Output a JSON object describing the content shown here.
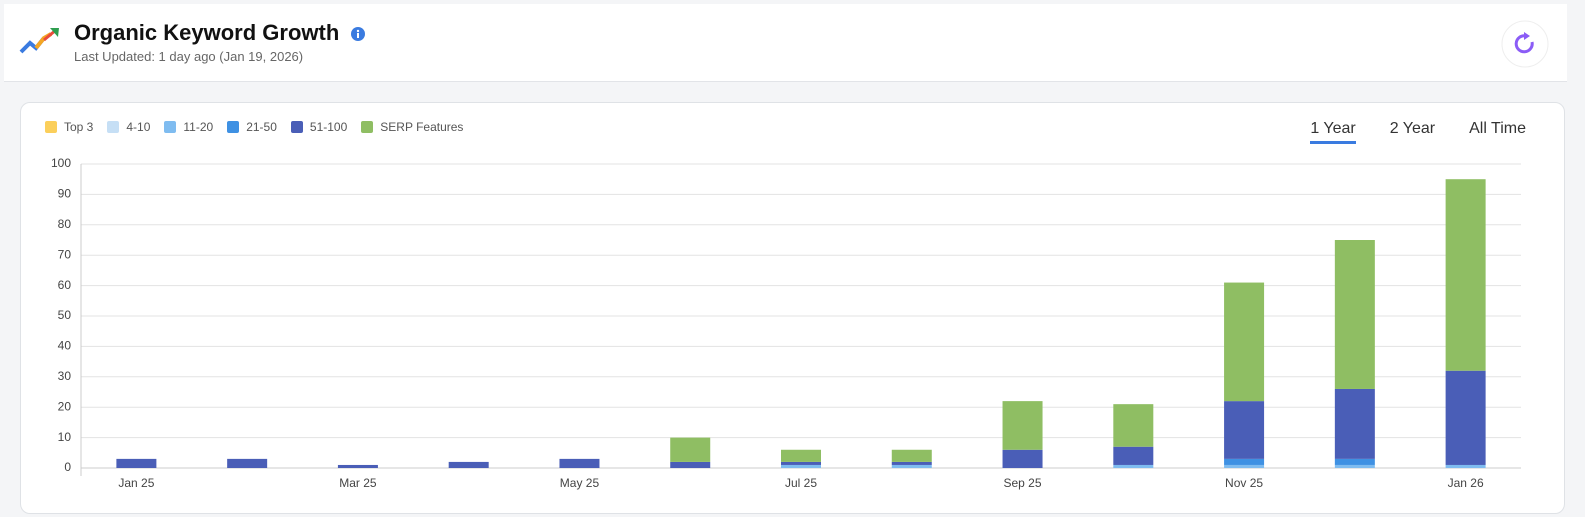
{
  "header": {
    "title": "Organic Keyword Growth",
    "subtitle": "Last Updated: 1 day ago (Jan 19, 2026)"
  },
  "range_options": [
    {
      "label": "1 Year",
      "active": true
    },
    {
      "label": "2 Year",
      "active": false
    },
    {
      "label": "All Time",
      "active": false
    }
  ],
  "chart_data": {
    "type": "stacked_bar",
    "categories": [
      "Jan 25",
      null,
      "Mar 25",
      null,
      "May 25",
      null,
      "Jul 25",
      null,
      "Sep 25",
      null,
      "Nov 25",
      null,
      "Jan 26"
    ],
    "series": [
      {
        "name": "Top 3",
        "color": "#fbcf5b",
        "values": [
          0,
          0,
          0,
          0,
          0,
          0,
          0,
          0,
          0,
          0,
          0,
          0,
          0
        ]
      },
      {
        "name": "4-10",
        "color": "#c6dff5",
        "values": [
          0,
          0,
          0,
          0,
          0,
          0,
          0,
          0,
          0,
          0,
          0,
          0,
          0
        ]
      },
      {
        "name": "11-20",
        "color": "#7fbcf0",
        "values": [
          0,
          0,
          0,
          0,
          0,
          0,
          1,
          1,
          0,
          1,
          1,
          1,
          1
        ]
      },
      {
        "name": "21-50",
        "color": "#3f91e3",
        "values": [
          0,
          0,
          0,
          0,
          0,
          0,
          0,
          0,
          0,
          0,
          2,
          2,
          0
        ]
      },
      {
        "name": "51-100",
        "color": "#4a5eb7",
        "values": [
          3,
          3,
          1,
          2,
          3,
          2,
          1,
          1,
          6,
          6,
          19,
          23,
          31
        ]
      },
      {
        "name": "SERP Features",
        "color": "#8fbe63",
        "values": [
          0,
          0,
          0,
          0,
          0,
          8,
          4,
          4,
          16,
          14,
          39,
          49,
          63
        ]
      }
    ],
    "ylim": [
      0,
      100
    ],
    "yticks": [
      0,
      10,
      20,
      30,
      40,
      50,
      60,
      70,
      80,
      90,
      100
    ],
    "grid": true
  }
}
